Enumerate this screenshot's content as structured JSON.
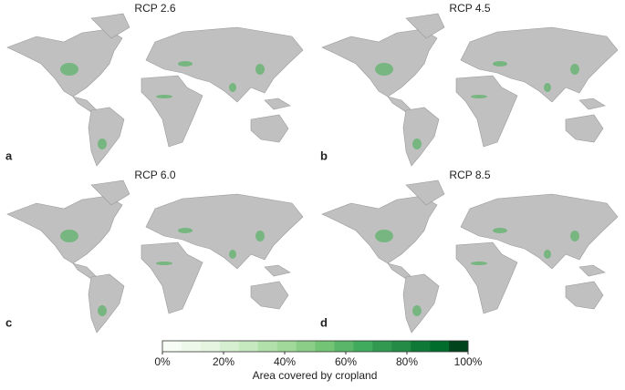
{
  "panels": [
    {
      "letter": "a",
      "title": "RCP 2.6"
    },
    {
      "letter": "b",
      "title": "RCP 4.5"
    },
    {
      "letter": "c",
      "title": "RCP 6.0"
    },
    {
      "letter": "d",
      "title": "RCP 8.5"
    }
  ],
  "colorbar": {
    "label": "Area covered by cropland",
    "lim": [
      0,
      100
    ],
    "ticks": [
      {
        "value": 0,
        "label": "0%"
      },
      {
        "value": 20,
        "label": "20%"
      },
      {
        "value": 40,
        "label": "40%"
      },
      {
        "value": 60,
        "label": "60%"
      },
      {
        "value": 80,
        "label": "80%"
      },
      {
        "value": 100,
        "label": "100%"
      }
    ],
    "colors": [
      "#f7fcf5",
      "#eef8ea",
      "#e5f5e0",
      "#d6efd0",
      "#c7e9c0",
      "#b2e0ab",
      "#a1d99b",
      "#8ace88",
      "#74c476",
      "#5ab769",
      "#41ab5d",
      "#319a50",
      "#238b45",
      "#0f7a38",
      "#006d2c",
      "#00441b"
    ]
  }
}
